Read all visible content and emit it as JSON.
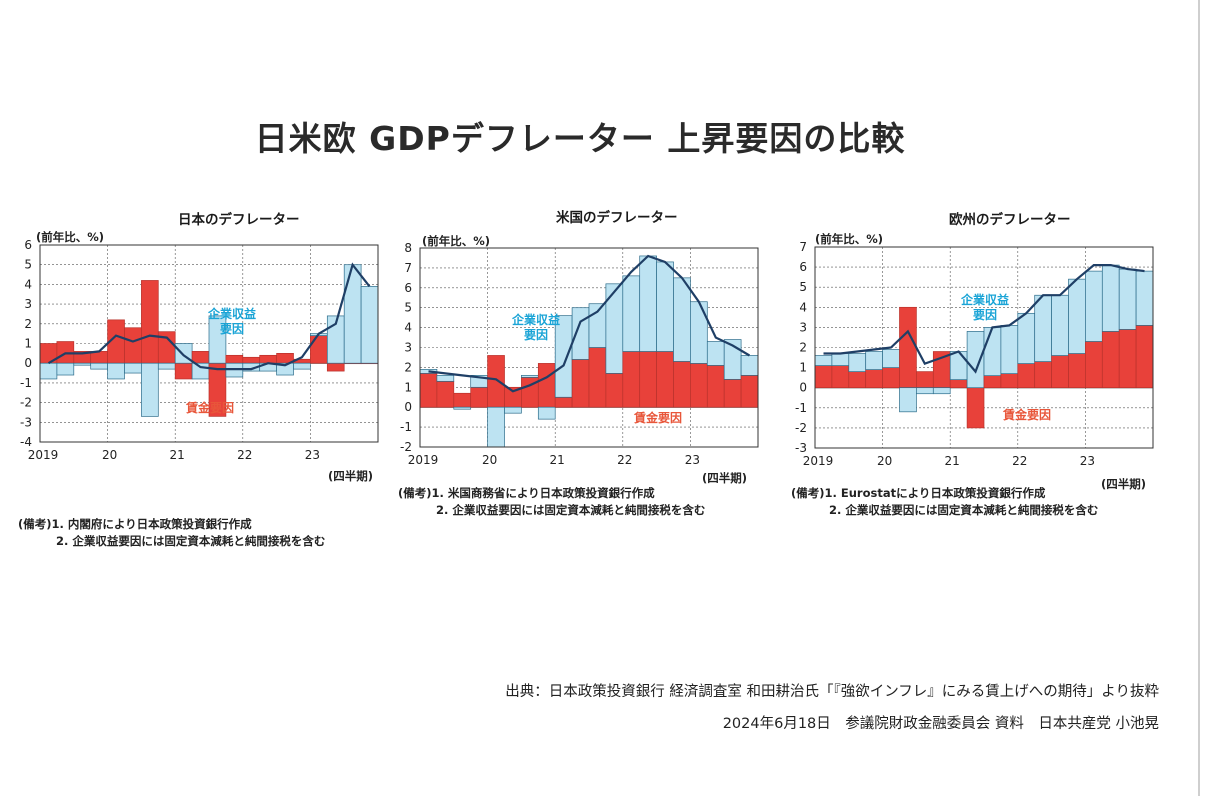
{
  "title": "日米欧 GDPデフレーター 上昇要因の比較",
  "source_line": "出典：日本政策投資銀行 経済調査室 和田耕治氏「『強欲インフレ』にみる賃上げへの期待」より抜粋",
  "date_line": "2024年6月18日　参議院財政金融委員会 資料　日本共産党 小池晃",
  "colors": {
    "wage": "#e8413a",
    "profit": "#bde3f2",
    "line": "#1f3f66",
    "wage_text": "#e8563a",
    "profit_text": "#1aa4d6"
  },
  "chart_data": [
    {
      "type": "bar",
      "title": "日本のデフレーター",
      "ylabel": "(前年比、%)",
      "period_label": "(四半期)",
      "year_labels": [
        "2019",
        "20",
        "21",
        "22",
        "23"
      ],
      "ylim": [
        -4,
        6
      ],
      "yticks": [
        -4,
        -3,
        -2,
        -1,
        0,
        1,
        2,
        3,
        4,
        5,
        6
      ],
      "grid": true,
      "x": [
        "2019Q1",
        "2019Q2",
        "2019Q3",
        "2019Q4",
        "2020Q1",
        "2020Q2",
        "2020Q3",
        "2020Q4",
        "2021Q1",
        "2021Q2",
        "2021Q3",
        "2021Q4",
        "2022Q1",
        "2022Q2",
        "2022Q3",
        "2022Q4",
        "2023Q1",
        "2023Q2",
        "2023Q3",
        "2023Q4"
      ],
      "series": [
        {
          "name": "賃金要因",
          "kind": "bar",
          "values": [
            1.0,
            1.1,
            0.6,
            0.6,
            2.2,
            1.8,
            4.2,
            1.6,
            -0.8,
            0.6,
            -2.7,
            0.4,
            0.3,
            0.4,
            0.5,
            0.2,
            1.4,
            -0.4,
            0.0,
            0.0
          ]
        },
        {
          "name": "企業収益要因",
          "kind": "bar",
          "values": [
            -0.8,
            -0.6,
            -0.1,
            -0.3,
            -0.8,
            -0.5,
            -2.7,
            -0.3,
            1.0,
            -0.8,
            2.4,
            -0.7,
            -0.4,
            -0.4,
            -0.6,
            -0.3,
            0.1,
            2.4,
            5.0,
            3.9
          ]
        },
        {
          "name": "GDPデフレーター",
          "kind": "line",
          "values": [
            0.0,
            0.5,
            0.5,
            0.6,
            1.4,
            1.1,
            1.4,
            1.3,
            0.4,
            -0.2,
            -0.3,
            -0.3,
            -0.3,
            0.0,
            -0.1,
            0.3,
            1.5,
            2.0,
            5.0,
            3.9
          ]
        }
      ],
      "annotations": [
        {
          "text": "企業収益\n要因",
          "series": "企業収益要因"
        },
        {
          "text": "賃金要因",
          "series": "賃金要因"
        }
      ],
      "notes": [
        "(備考)1. 内閣府により日本政策投資銀行作成",
        "2. 企業収益要因には固定資本減耗と純間接税を含む"
      ]
    },
    {
      "type": "bar",
      "title": "米国のデフレーター",
      "ylabel": "(前年比、%)",
      "period_label": "(四半期)",
      "year_labels": [
        "2019",
        "20",
        "21",
        "22",
        "23"
      ],
      "ylim": [
        -2,
        8
      ],
      "yticks": [
        -2,
        -1,
        0,
        1,
        2,
        3,
        4,
        5,
        6,
        7,
        8
      ],
      "grid": true,
      "x": [
        "2019Q1",
        "2019Q2",
        "2019Q3",
        "2019Q4",
        "2020Q1",
        "2020Q2",
        "2020Q3",
        "2020Q4",
        "2021Q1",
        "2021Q2",
        "2021Q3",
        "2021Q4",
        "2022Q1",
        "2022Q2",
        "2022Q3",
        "2022Q4",
        "2023Q1",
        "2023Q2",
        "2023Q3",
        "2023Q4"
      ],
      "series": [
        {
          "name": "賃金要因",
          "kind": "bar",
          "values": [
            1.7,
            1.3,
            0.7,
            1.0,
            2.6,
            1.0,
            1.5,
            2.2,
            0.5,
            2.4,
            3.0,
            1.7,
            2.8,
            2.8,
            2.8,
            2.3,
            2.2,
            2.1,
            1.4,
            1.6
          ]
        },
        {
          "name": "企業収益要因",
          "kind": "bar",
          "values": [
            0.2,
            0.3,
            -0.1,
            0.6,
            -2.0,
            -0.3,
            0.1,
            -0.6,
            4.1,
            2.6,
            2.2,
            4.5,
            3.8,
            4.8,
            4.5,
            4.2,
            3.1,
            1.2,
            2.0,
            1.0
          ]
        },
        {
          "name": "GDPデフレーター",
          "kind": "line",
          "values": [
            1.8,
            1.7,
            1.6,
            1.5,
            1.4,
            0.8,
            1.1,
            1.5,
            2.1,
            4.3,
            4.8,
            5.8,
            6.8,
            7.6,
            7.3,
            6.5,
            5.3,
            3.5,
            3.1,
            2.6
          ]
        }
      ],
      "annotations": [
        {
          "text": "企業収益\n要因",
          "series": "企業収益要因"
        },
        {
          "text": "賃金要因",
          "series": "賃金要因"
        }
      ],
      "notes": [
        "(備考)1. 米国商務省により日本政策投資銀行作成",
        "2. 企業収益要因には固定資本減耗と純間接税を含む"
      ]
    },
    {
      "type": "bar",
      "title": "欧州のデフレーター",
      "ylabel": "(前年比、%)",
      "period_label": "(四半期)",
      "year_labels": [
        "2019",
        "20",
        "21",
        "22",
        "23"
      ],
      "ylim": [
        -3,
        7
      ],
      "yticks": [
        -3,
        -2,
        -1,
        0,
        1,
        2,
        3,
        4,
        5,
        6,
        7
      ],
      "grid": true,
      "x": [
        "2019Q1",
        "2019Q2",
        "2019Q3",
        "2019Q4",
        "2020Q1",
        "2020Q2",
        "2020Q3",
        "2020Q4",
        "2021Q1",
        "2021Q2",
        "2021Q3",
        "2021Q4",
        "2022Q1",
        "2022Q2",
        "2022Q3",
        "2022Q4",
        "2023Q1",
        "2023Q2",
        "2023Q3",
        "2023Q4"
      ],
      "series": [
        {
          "name": "賃金要因",
          "kind": "bar",
          "values": [
            1.1,
            1.1,
            0.8,
            0.9,
            1.0,
            4.0,
            0.8,
            1.8,
            0.4,
            -2.0,
            0.6,
            0.7,
            1.2,
            1.3,
            1.6,
            1.7,
            2.3,
            2.8,
            2.9,
            3.1
          ]
        },
        {
          "name": "企業収益要因",
          "kind": "bar",
          "values": [
            0.5,
            0.6,
            0.9,
            0.9,
            0.9,
            -1.2,
            -0.3,
            -0.3,
            1.4,
            2.8,
            2.4,
            2.4,
            2.5,
            3.3,
            3.0,
            3.7,
            3.5,
            3.3,
            3.0,
            2.7
          ]
        },
        {
          "name": "GDPデフレーター",
          "kind": "line",
          "values": [
            1.7,
            1.7,
            1.8,
            1.9,
            2.0,
            2.8,
            1.2,
            1.5,
            1.8,
            0.8,
            3.0,
            3.1,
            3.7,
            4.6,
            4.6,
            5.4,
            6.1,
            6.1,
            5.9,
            5.8
          ]
        }
      ],
      "annotations": [
        {
          "text": "企業収益\n要因",
          "series": "企業収益要因"
        },
        {
          "text": "賃金要因",
          "series": "賃金要因"
        }
      ],
      "notes": [
        "(備考)1. Eurostatにより日本政策投資銀行作成",
        "2. 企業収益要因には固定資本減耗と純間接税を含む"
      ]
    }
  ]
}
